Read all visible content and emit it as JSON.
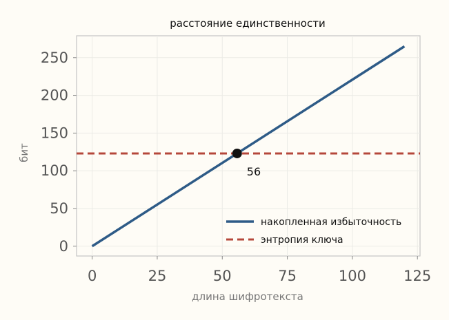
{
  "chart_data": {
    "type": "line",
    "title": "расстояние единственности",
    "xlabel": "длина шифротекста",
    "ylabel": "бит",
    "xlim": [
      -6,
      126
    ],
    "ylim": [
      -13,
      279
    ],
    "xticks": [
      0,
      25,
      50,
      75,
      100,
      125
    ],
    "yticks": [
      0,
      50,
      100,
      150,
      200,
      250
    ],
    "grid": true,
    "legend_position": "bottom-right",
    "series": [
      {
        "name": "накопленная избыточность",
        "style": "solid",
        "color": "#2e5b87",
        "x": [
          0,
          120
        ],
        "y": [
          0,
          265
        ]
      },
      {
        "name": "энтропия ключа",
        "style": "dashed",
        "color": "#b5473b",
        "x": [
          -6,
          126
        ],
        "y": [
          123,
          123
        ]
      }
    ],
    "annotations": [
      {
        "label": "56",
        "x": 55.7,
        "y": 123,
        "marker_color": "#111111"
      }
    ]
  }
}
